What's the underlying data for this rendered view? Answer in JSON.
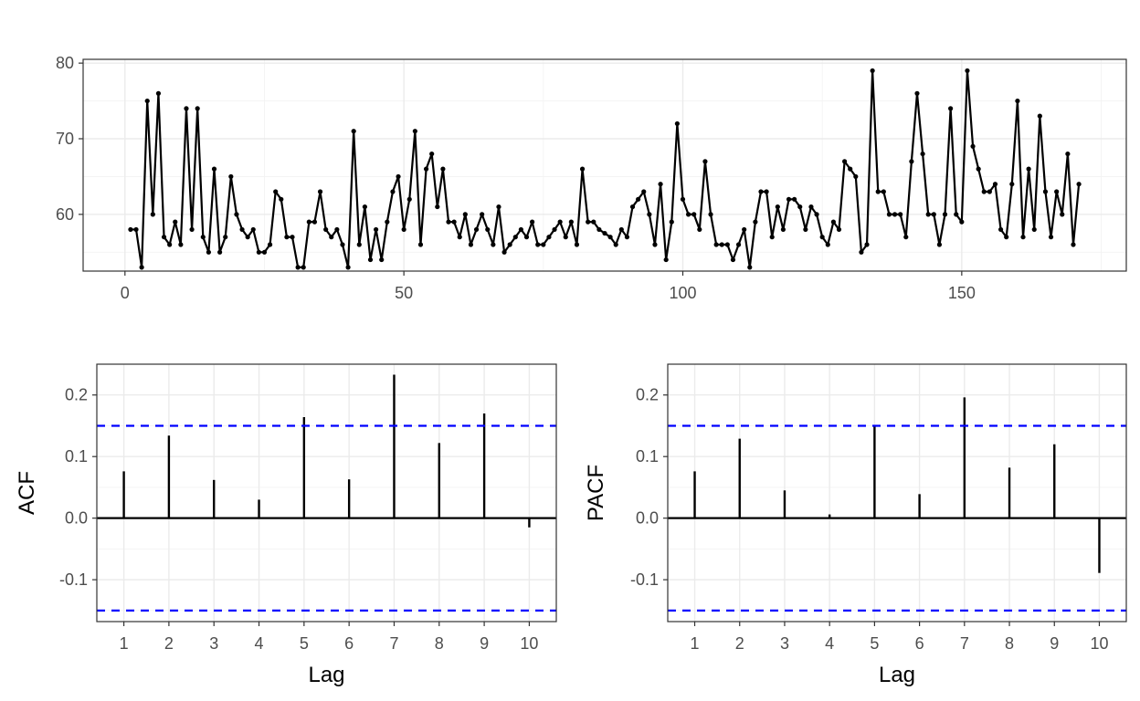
{
  "chart_data": [
    {
      "type": "line",
      "title": "",
      "xlabel": "",
      "ylabel": "",
      "xlim": [
        -7.5,
        179.5
      ],
      "ylim": [
        52.5,
        80.5
      ],
      "x_ticks": [
        0,
        50,
        100,
        150
      ],
      "y_ticks": [
        60,
        70,
        80
      ],
      "grid": true,
      "markers": true,
      "series": [
        {
          "x_start": 1,
          "values": [
            58,
            58,
            53,
            75,
            60,
            76,
            57,
            56,
            59,
            56,
            74,
            58,
            74,
            57,
            55,
            66,
            55,
            57,
            65,
            60,
            58,
            57,
            58,
            55,
            55,
            56,
            63,
            62,
            57,
            57,
            53,
            53,
            59,
            59,
            63,
            58,
            57,
            58,
            56,
            53,
            71,
            56,
            61,
            54,
            58,
            54,
            59,
            63,
            65,
            58,
            62,
            71,
            56,
            66,
            68,
            61,
            66,
            59,
            59,
            57,
            60,
            56,
            58,
            60,
            58,
            56,
            61,
            55,
            56,
            57,
            58,
            57,
            59,
            56,
            56,
            57,
            58,
            59,
            57,
            59,
            56,
            66,
            59,
            59,
            58,
            57.5,
            57,
            56,
            58,
            57,
            61,
            62,
            63,
            60,
            56,
            64,
            54,
            59,
            72,
            62,
            60,
            60,
            58,
            67,
            60,
            56,
            56,
            56,
            54,
            56,
            58,
            53,
            59,
            63,
            63,
            57,
            61,
            58,
            62,
            62,
            61,
            58,
            61,
            60,
            57,
            56,
            59,
            58,
            67,
            66,
            65,
            55,
            56,
            79,
            63,
            63,
            60,
            60,
            60,
            57,
            67,
            76,
            68,
            60,
            60,
            56,
            60,
            74,
            60,
            59,
            79,
            69,
            66,
            63,
            63,
            64,
            58,
            57,
            64,
            75,
            57,
            66,
            58,
            73,
            63,
            57,
            63,
            60,
            68,
            56,
            64
          ]
        }
      ]
    },
    {
      "type": "bar",
      "title": "",
      "xlabel": "Lag",
      "ylabel": "ACF",
      "categories": [
        "1",
        "2",
        "3",
        "4",
        "5",
        "6",
        "7",
        "8",
        "9",
        "10"
      ],
      "values": [
        0.076,
        0.134,
        0.062,
        0.03,
        0.164,
        0.063,
        0.233,
        0.122,
        0.17,
        -0.015
      ],
      "ylim": [
        -0.168,
        0.25
      ],
      "y_ticks": [
        -0.1,
        0.0,
        0.1,
        0.2
      ],
      "y_tick_labels": [
        "-0.1",
        "0.0",
        "0.1",
        "0.2"
      ],
      "confidence_bound": 0.15,
      "confidence_color": "#0000ff",
      "grid": true
    },
    {
      "type": "bar",
      "title": "",
      "xlabel": "Lag",
      "ylabel": "PACF",
      "categories": [
        "1",
        "2",
        "3",
        "4",
        "5",
        "6",
        "7",
        "8",
        "9",
        "10"
      ],
      "values": [
        0.076,
        0.129,
        0.045,
        0.006,
        0.15,
        0.039,
        0.196,
        0.082,
        0.12,
        -0.089
      ],
      "ylim": [
        -0.168,
        0.25
      ],
      "y_ticks": [
        -0.1,
        0.0,
        0.1,
        0.2
      ],
      "y_tick_labels": [
        "-0.1",
        "0.0",
        "0.1",
        "0.2"
      ],
      "confidence_bound": 0.15,
      "confidence_color": "#0000ff",
      "grid": true
    }
  ]
}
